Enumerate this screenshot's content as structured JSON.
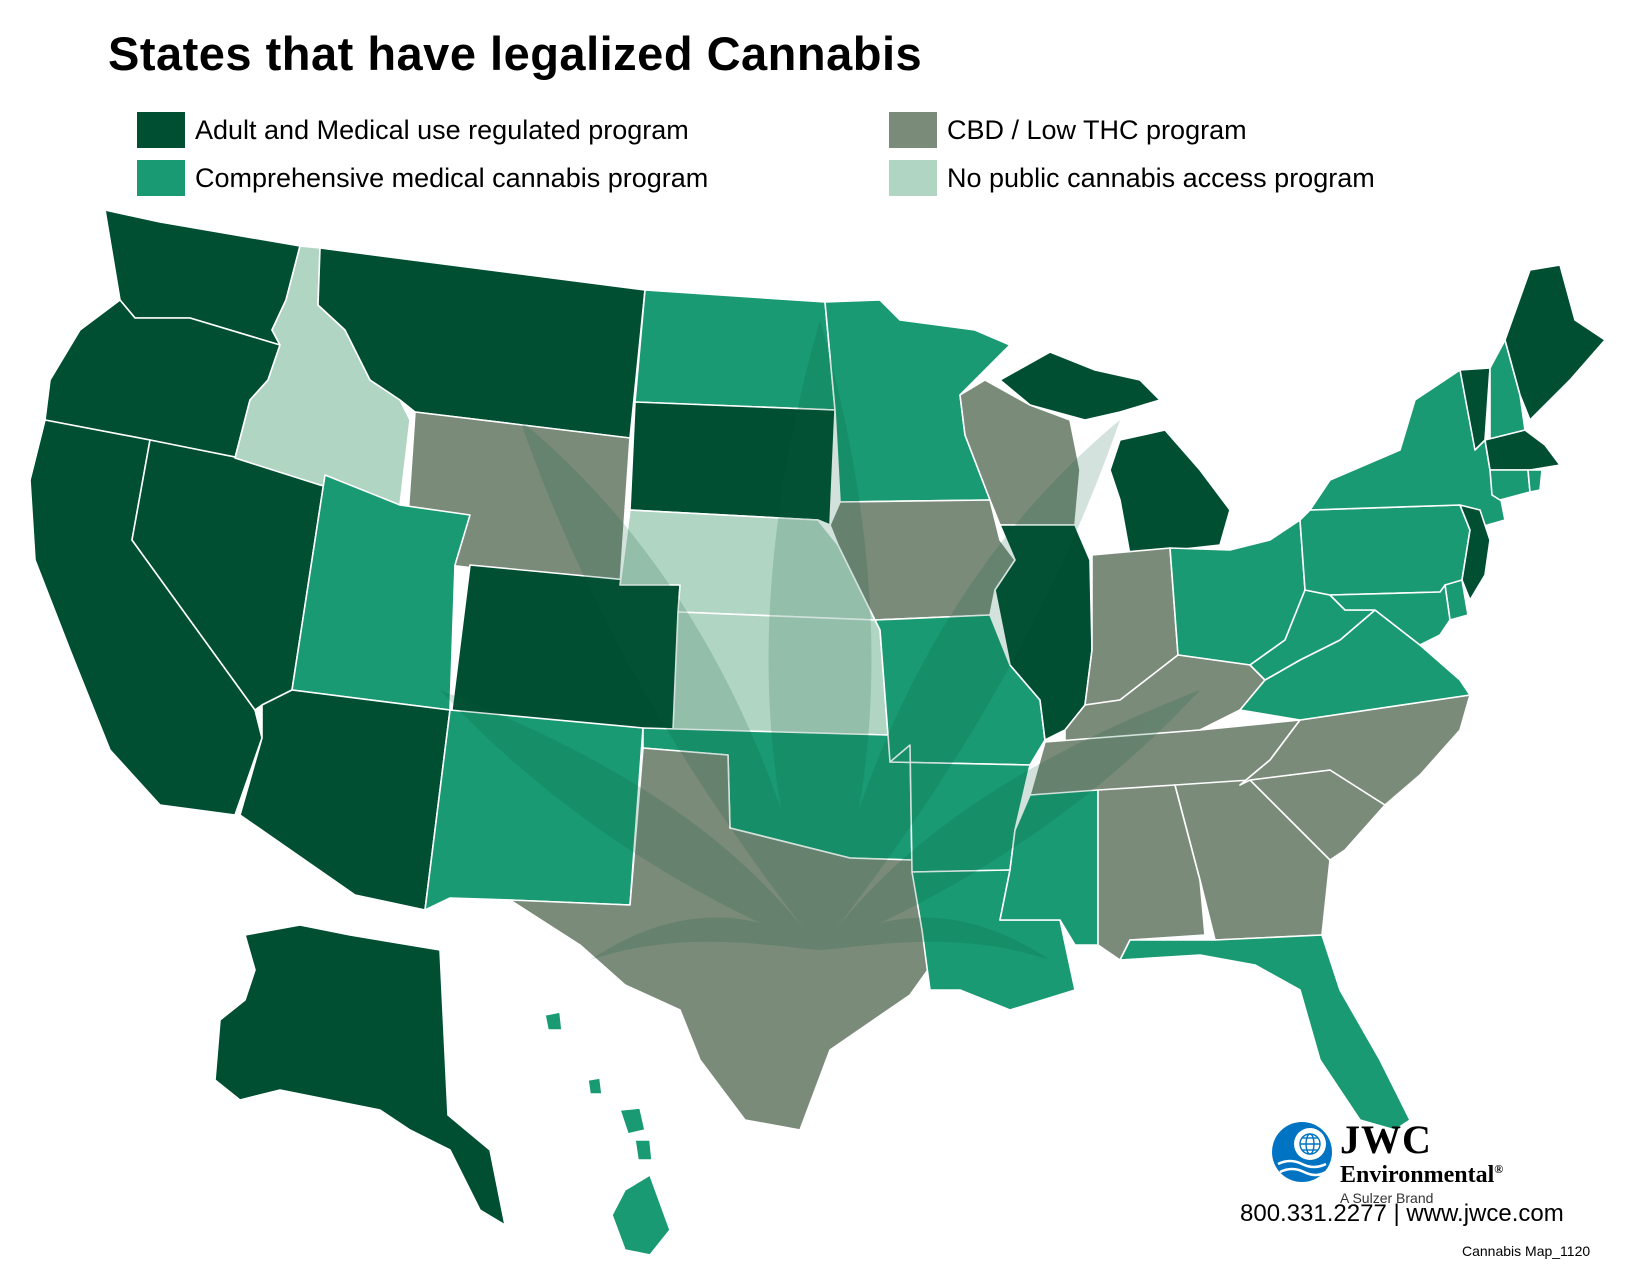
{
  "title": "States that have legalized Cannabis",
  "legend": [
    {
      "key": "adult",
      "label": "Adult and Medical use regulated program",
      "color": "#004f33"
    },
    {
      "key": "medical",
      "label": "Comprehensive medical cannabis program",
      "color": "#199a72"
    },
    {
      "key": "cbd",
      "label": "CBD / Low THC program",
      "color": "#7b8b7a"
    },
    {
      "key": "none",
      "label": "No public cannabis access program",
      "color": "#b1d5c3"
    }
  ],
  "states": {
    "WA": "adult",
    "OR": "adult",
    "CA": "adult",
    "NV": "adult",
    "AZ": "adult",
    "MT": "adult",
    "CO": "adult",
    "SD": "adult",
    "IL": "adult",
    "MI": "adult",
    "VT": "adult",
    "ME": "adult",
    "MA": "adult",
    "NJ": "adult",
    "AK": "adult",
    "ID": "none",
    "NE": "none",
    "KS": "none",
    "WY": "cbd",
    "WI": "cbd",
    "IA": "cbd",
    "IN": "cbd",
    "KY": "cbd",
    "TN": "cbd",
    "TX": "cbd",
    "AL": "cbd",
    "GA": "cbd",
    "NC": "cbd",
    "SC": "cbd",
    "ND": "medical",
    "MN": "medical",
    "UT": "medical",
    "NM": "medical",
    "OK": "medical",
    "MO": "medical",
    "AR": "medical",
    "LA": "medical",
    "MS": "medical",
    "FL": "medical",
    "OH": "medical",
    "PA": "medical",
    "NY": "medical",
    "WV": "medical",
    "VA": "medical",
    "MD": "medical",
    "DE": "medical",
    "NH": "medical",
    "CT": "medical",
    "RI": "medical",
    "HI": "medical"
  },
  "logo": {
    "name": "JWC",
    "sub": "Environmental",
    "registered": "®",
    "tagline": "A Sulzer Brand",
    "icon": "globe-icon"
  },
  "contact": "800.331.2277 | www.jwce.com",
  "map_code": "Cannabis Map_1120"
}
